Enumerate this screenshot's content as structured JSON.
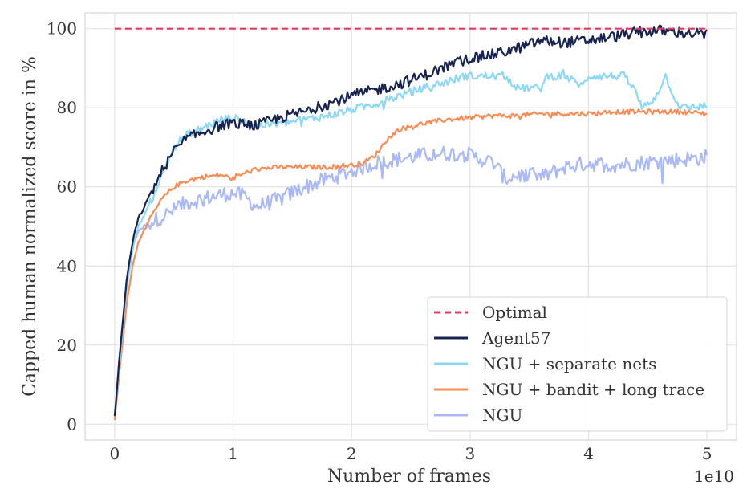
{
  "chart_data": {
    "type": "line",
    "xlabel": "Number of  frames",
    "ylabel": "Capped human normalized score in %",
    "x_multiplier_label": "1e10",
    "xlim": [
      -0.25,
      5.25
    ],
    "ylim": [
      -4,
      104
    ],
    "xticks": [
      0,
      1,
      2,
      3,
      4,
      5
    ],
    "xtick_labels": [
      "0",
      "1",
      "2",
      "3",
      "4",
      "5"
    ],
    "yticks": [
      0,
      20,
      40,
      60,
      80,
      100
    ],
    "ytick_labels": [
      "0",
      "20",
      "40",
      "60",
      "80",
      "100"
    ],
    "grid": true,
    "legend_position": "lower-right",
    "series": [
      {
        "name": "Optimal",
        "color": "#e03b5f",
        "dashed": true,
        "x": [
          0,
          5
        ],
        "y": [
          100,
          100
        ]
      },
      {
        "name": "Agent57",
        "color": "#172450",
        "noise": 1.4,
        "x": [
          0,
          0.05,
          0.1,
          0.15,
          0.2,
          0.3,
          0.4,
          0.5,
          0.6,
          0.75,
          0.9,
          1.0,
          1.2,
          1.4,
          1.6,
          1.8,
          2.0,
          2.2,
          2.4,
          2.6,
          2.8,
          3.0,
          3.2,
          3.4,
          3.6,
          3.8,
          4.0,
          4.2,
          4.4,
          4.6,
          4.8,
          5.0
        ],
        "y": [
          2,
          20,
          36,
          46,
          52,
          58,
          64,
          69,
          72,
          74,
          75.5,
          76,
          75.5,
          77.5,
          79,
          81,
          83,
          84.5,
          86,
          88,
          90.5,
          92.5,
          93.5,
          95,
          97,
          96.5,
          97,
          98,
          99,
          99.5,
          99,
          98.5
        ]
      },
      {
        "name": "NGU + separate nets",
        "color": "#8bd8f6",
        "noise": 1.0,
        "x": [
          0,
          0.05,
          0.1,
          0.15,
          0.2,
          0.3,
          0.4,
          0.5,
          0.6,
          0.75,
          0.9,
          1.0,
          1.2,
          1.4,
          1.6,
          1.8,
          2.0,
          2.2,
          2.4,
          2.6,
          2.8,
          2.95,
          3.3,
          3.4,
          3.6,
          3.65,
          3.8,
          3.95,
          4.0,
          4.3,
          4.4,
          4.45,
          4.55,
          4.65,
          4.75,
          4.8,
          5.0
        ],
        "y": [
          2,
          18,
          34,
          44,
          50,
          56,
          63,
          70,
          73,
          75,
          77,
          77.5,
          75.5,
          76,
          77,
          78,
          79.5,
          81,
          83,
          85,
          86.5,
          88,
          88,
          85,
          85,
          88,
          88,
          85.5,
          88,
          88,
          84,
          80,
          82,
          88,
          81,
          80,
          80.5
        ]
      },
      {
        "name": "NGU + bandit + long trace",
        "color": "#f78c55",
        "noise": 0.6,
        "x": [
          0,
          0.05,
          0.1,
          0.15,
          0.2,
          0.3,
          0.4,
          0.5,
          0.6,
          0.75,
          0.9,
          1.0,
          1.1,
          1.2,
          1.4,
          1.6,
          1.8,
          2.0,
          2.1,
          2.2,
          2.3,
          2.4,
          2.6,
          2.8,
          3.0,
          3.2,
          3.4,
          3.6,
          3.8,
          4.0,
          4.2,
          4.4,
          4.6,
          4.8,
          5.0
        ],
        "y": [
          1,
          16,
          30,
          40,
          46,
          52,
          57,
          60,
          61.5,
          62.5,
          63,
          62,
          63.5,
          64.5,
          65,
          65,
          65,
          65.5,
          66,
          68,
          72,
          74.5,
          76,
          77,
          77.5,
          78,
          78,
          78.5,
          78.5,
          78.5,
          79,
          79,
          79,
          79,
          78.5
        ]
      },
      {
        "name": "NGU",
        "color": "#a9b9f7",
        "noise": 2.0,
        "x": [
          0,
          0.05,
          0.1,
          0.15,
          0.2,
          0.3,
          0.4,
          0.5,
          0.6,
          0.75,
          0.9,
          1.0,
          1.1,
          1.2,
          1.4,
          1.6,
          1.8,
          2.0,
          2.2,
          2.4,
          2.6,
          2.8,
          3.0,
          3.1,
          3.2,
          3.3,
          3.4,
          3.6,
          3.8,
          4.0,
          4.2,
          4.4,
          4.6,
          4.8,
          5.0
        ],
        "y": [
          2,
          20,
          36,
          45,
          49,
          51,
          52.5,
          54,
          56,
          57,
          58,
          58.5,
          57.5,
          55,
          57,
          60,
          62,
          64,
          66,
          67,
          68,
          68.5,
          68,
          67,
          66,
          62,
          63,
          62.5,
          65,
          66,
          65.5,
          66,
          66.5,
          67,
          67.5
        ]
      }
    ]
  }
}
